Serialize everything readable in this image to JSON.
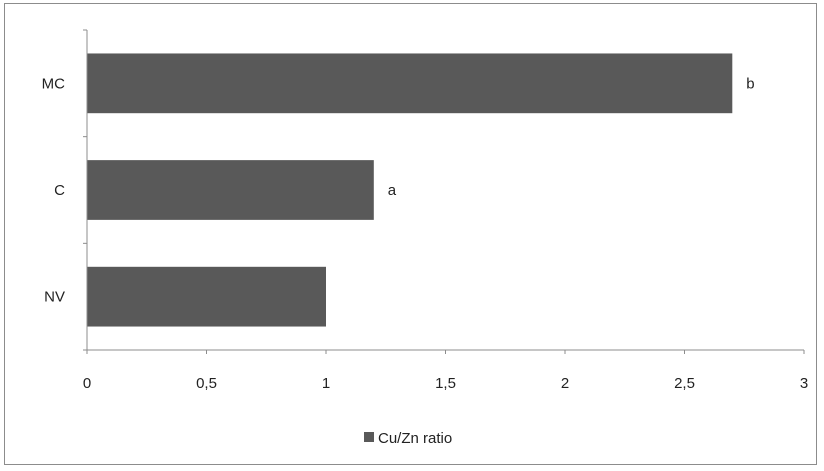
{
  "chart_data": {
    "type": "bar",
    "orientation": "horizontal",
    "categories": [
      "NV",
      "C",
      "MC"
    ],
    "series": [
      {
        "name": "Cu/Zn ratio",
        "values": [
          1.0,
          1.2,
          2.7
        ],
        "color": "#595959"
      }
    ],
    "data_labels": [
      "",
      "a",
      "b"
    ],
    "x_ticks": [
      "0",
      "0,5",
      "1",
      "1,5",
      "2",
      "2,5",
      "3"
    ],
    "xlim": [
      0,
      3
    ],
    "grid": false,
    "legend": {
      "position": "bottom",
      "entries": [
        "Cu/Zn ratio"
      ]
    }
  }
}
